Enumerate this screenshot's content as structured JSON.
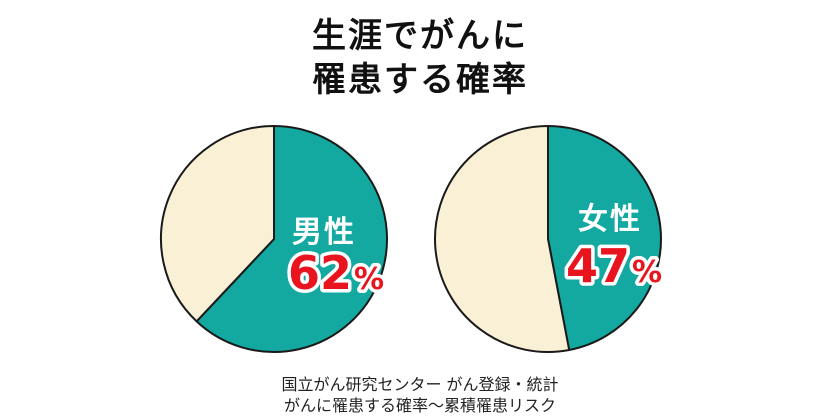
{
  "title_lines": [
    "生涯でがんに",
    "罹患する確率"
  ],
  "source_lines": [
    "国立がん研究センター がん登録・統計",
    "がんに罹患する確率〜累積罹患リスク"
  ],
  "colors": {
    "teal": "#13a8a0",
    "cream": "#faf0d6",
    "outline": "#1a1a1a",
    "percent_red": "#e8141e"
  },
  "chart_data": [
    {
      "type": "pie",
      "label": "男性",
      "value_text": "62",
      "unit": "%",
      "slices": [
        {
          "name": "男性",
          "value": 62
        },
        {
          "name": "",
          "value": 38
        }
      ]
    },
    {
      "type": "pie",
      "label": "女性",
      "value_text": "47",
      "unit": "%",
      "slices": [
        {
          "name": "女性",
          "value": 47
        },
        {
          "name": "",
          "value": 53
        }
      ]
    }
  ]
}
